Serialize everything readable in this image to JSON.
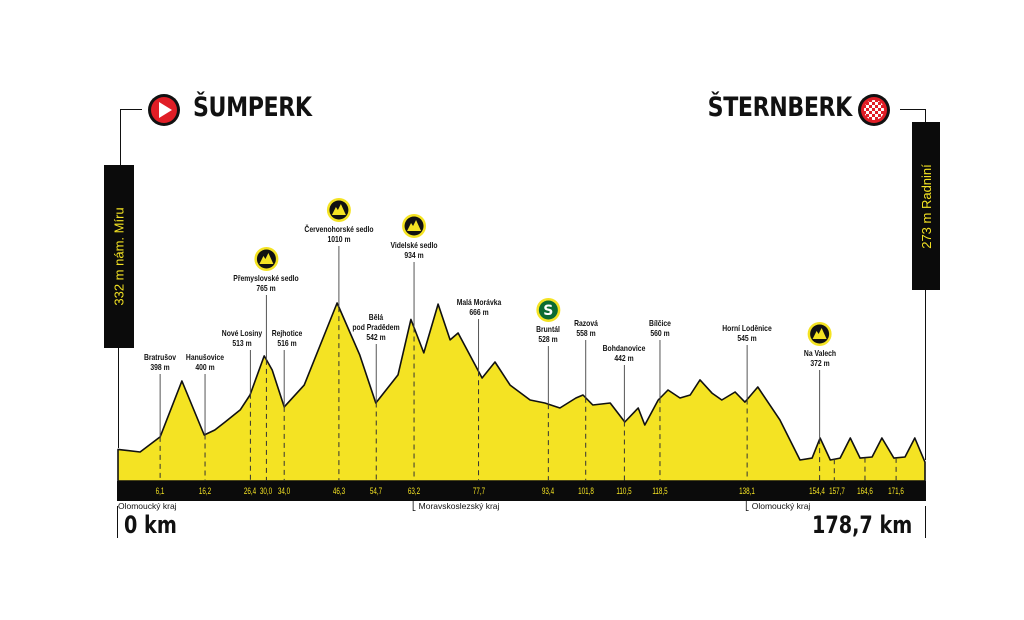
{
  "start": {
    "city": "ŠUMPERK",
    "icon": "start-play-icon",
    "elevation_label": "332 m nám. Míru",
    "km_label": "0 km"
  },
  "finish": {
    "city": "ŠTERNBERK",
    "icon": "finish-checkered-flag-icon",
    "elevation_label": "273 m Radniní",
    "km_label": "178,7 km"
  },
  "colors": {
    "profile": "#f4e323",
    "bar": "#0b0b0b",
    "icon_red": "#e01e26",
    "sprint_green": "#0b6b32"
  },
  "regions": [
    {
      "km": 0,
      "label": "Olomoucký kraj"
    },
    {
      "km": 63.2,
      "label": "Moravskoslezský kraj"
    },
    {
      "km": 138.1,
      "label": "Olomoucký kraj"
    }
  ],
  "chart_data": {
    "type": "area",
    "xlim": [
      0,
      178.7
    ],
    "x_unit": "km",
    "y_unit": "m",
    "profile": [
      [
        0,
        332
      ],
      [
        1.6,
        320
      ],
      [
        6.1,
        390
      ],
      [
        11.0,
        649
      ],
      [
        16.0,
        399
      ],
      [
        18.4,
        422
      ],
      [
        20.7,
        459
      ],
      [
        24.1,
        515
      ],
      [
        26.3,
        584
      ],
      [
        29.5,
        765
      ],
      [
        31.3,
        700
      ],
      [
        34.0,
        529
      ],
      [
        38.5,
        630
      ],
      [
        45.9,
        1010
      ],
      [
        51.0,
        769
      ],
      [
        54.6,
        547
      ],
      [
        59.6,
        677
      ],
      [
        62.5,
        934
      ],
      [
        65.4,
        779
      ],
      [
        68.6,
        1005
      ],
      [
        71.3,
        839
      ],
      [
        73.1,
        871
      ],
      [
        78.5,
        663
      ],
      [
        81.4,
        737
      ],
      [
        84.8,
        630
      ],
      [
        89.3,
        561
      ],
      [
        92.6,
        547
      ],
      [
        96.0,
        524
      ],
      [
        99.6,
        570
      ],
      [
        101.2,
        584
      ],
      [
        103.4,
        538
      ],
      [
        107.3,
        547
      ],
      [
        110.6,
        459
      ],
      [
        113.6,
        524
      ],
      [
        115.1,
        445
      ],
      [
        118.1,
        561
      ],
      [
        120.3,
        607
      ],
      [
        123.0,
        570
      ],
      [
        125.3,
        584
      ],
      [
        127.5,
        654
      ],
      [
        130.2,
        593
      ],
      [
        132.4,
        561
      ],
      [
        135.4,
        598
      ],
      [
        137.6,
        551
      ],
      [
        140.5,
        621
      ],
      [
        145.5,
        468
      ],
      [
        150.0,
        283
      ],
      [
        152.7,
        292
      ],
      [
        154.5,
        385
      ],
      [
        156.8,
        283
      ],
      [
        159.0,
        292
      ],
      [
        161.3,
        385
      ],
      [
        163.5,
        292
      ],
      [
        166.2,
        297
      ],
      [
        168.4,
        385
      ],
      [
        171.1,
        292
      ],
      [
        173.6,
        297
      ],
      [
        175.8,
        385
      ],
      [
        178.7,
        273
      ]
    ],
    "ticks": [
      "6,1",
      "16,2",
      "26,4",
      "30,0",
      "34,0",
      "46,3",
      "54,7",
      "63,2",
      "77,7",
      "93,4",
      "101,8",
      "110,5",
      "118,5",
      "138,1",
      "154,4",
      "157,7",
      "164,6",
      "171,6"
    ],
    "waypoints": [
      {
        "km": 6.1,
        "name": "Bratrušov",
        "elev": "398 m"
      },
      {
        "km": 16.2,
        "name": "Hanušovice",
        "elev": "400 m"
      },
      {
        "km": 26.4,
        "name": "Nové Losiny",
        "elev": "513 m"
      },
      {
        "km": 30.0,
        "name": "Přemyslovské sedlo",
        "elev": "765 m",
        "icon": "mountain-climb-icon"
      },
      {
        "km": 34.0,
        "name": "Rejhotice",
        "elev": "516 m"
      },
      {
        "km": 46.3,
        "name": "Červenohorské sedlo",
        "elev": "1010 m",
        "icon": "mountain-climb-icon"
      },
      {
        "km": 54.7,
        "name": "Bělá",
        "name2": "pod Pradědem",
        "elev": "542 m"
      },
      {
        "km": 63.2,
        "name": "Videlské sedlo",
        "elev": "934 m",
        "icon": "mountain-climb-icon"
      },
      {
        "km": 77.7,
        "name": "Malá Morávka",
        "elev": "666 m"
      },
      {
        "km": 93.4,
        "name": "Bruntál",
        "elev": "528 m",
        "icon": "sprint-icon"
      },
      {
        "km": 101.8,
        "name": "Razová",
        "elev": "558 m"
      },
      {
        "km": 110.5,
        "name": "Bohdanovice",
        "elev": "442 m"
      },
      {
        "km": 118.5,
        "name": "Bílčice",
        "elev": "560 m"
      },
      {
        "km": 138.1,
        "name": "Horní Loděnice",
        "elev": "545 m"
      },
      {
        "km": 154.4,
        "name": "Na Valech",
        "elev": "372 m",
        "icon": "mountain-climb-icon"
      }
    ]
  }
}
